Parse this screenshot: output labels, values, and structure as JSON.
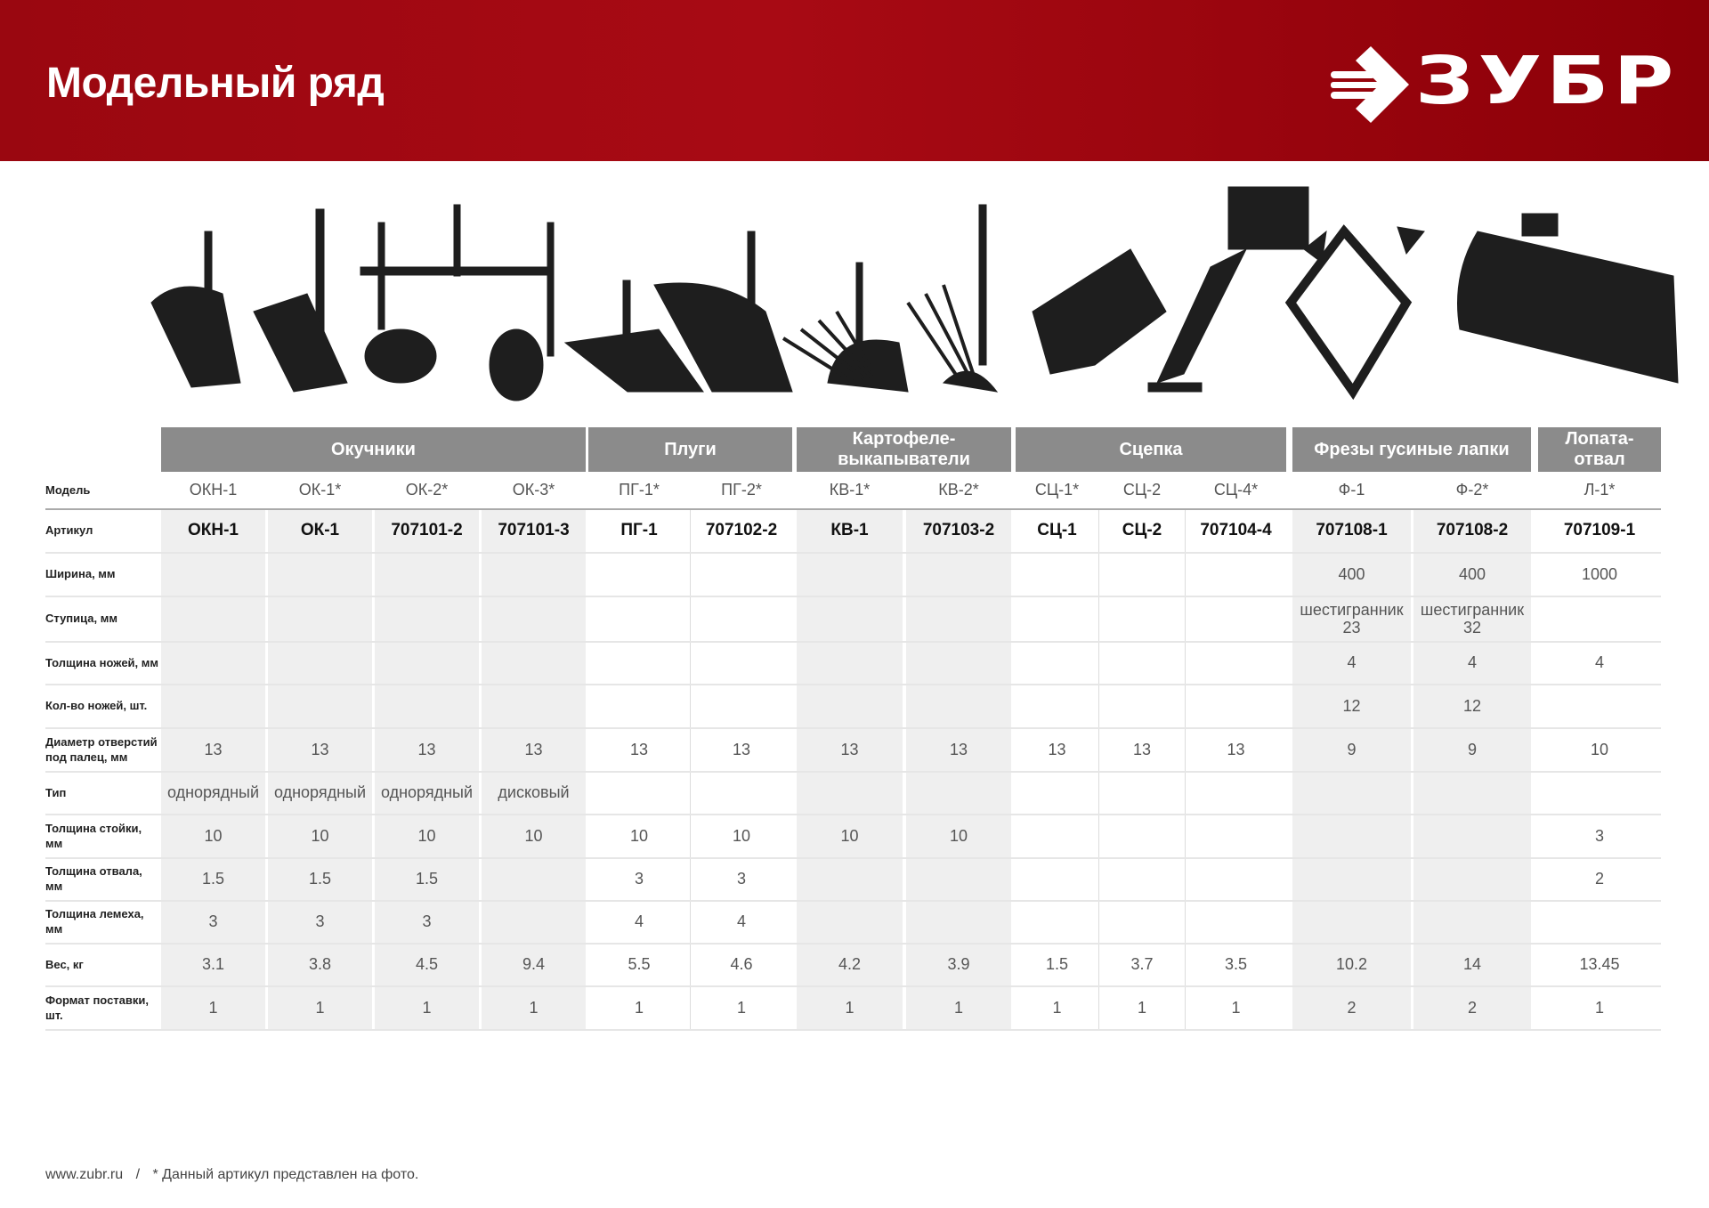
{
  "header": {
    "title": "Модельный ряд",
    "brand": "ЗУБР",
    "brand_color": "#a00a12"
  },
  "groups": [
    {
      "label": "Окучники",
      "span": [
        0,
        3
      ]
    },
    {
      "label": "Плуги",
      "span": [
        4,
        5
      ]
    },
    {
      "label": "Картофеле-\nвыкапыватели",
      "span": [
        6,
        7
      ]
    },
    {
      "label": "Сцепка",
      "span": [
        8,
        10
      ]
    },
    {
      "label": "Фрезы гусиные лапки",
      "span": [
        11,
        12
      ]
    },
    {
      "label": "Лопата-\nотвал",
      "span": [
        13,
        13
      ]
    }
  ],
  "model_label": "Модель",
  "models": [
    "ОКН-1",
    "ОК-1*",
    "ОК-2*",
    "ОК-3*",
    "ПГ-1*",
    "ПГ-2*",
    "КВ-1*",
    "КВ-2*",
    "СЦ-1*",
    "СЦ-2",
    "СЦ-4*",
    "Ф-1",
    "Ф-2*",
    "Л-1*"
  ],
  "article_label": "Артикул",
  "articles": [
    "ОКН-1",
    "ОК-1",
    "707101-2",
    "707101-3",
    "ПГ-1",
    "707102-2",
    "КВ-1",
    "707103-2",
    "СЦ-1",
    "СЦ-2",
    "707104-4",
    "707108-1",
    "707108-2",
    "707109-1"
  ],
  "rows": [
    {
      "label": "Ширина, мм",
      "values": [
        "",
        "",
        "",
        "",
        "",
        "",
        "",
        "",
        "",
        "",
        "",
        "400",
        "400",
        "1000"
      ]
    },
    {
      "label": "Ступица, мм",
      "values": [
        "",
        "",
        "",
        "",
        "",
        "",
        "",
        "",
        "",
        "",
        "",
        "шестигранник\n23",
        "шестигранник\n32",
        ""
      ]
    },
    {
      "label": "Толщина ножей, мм",
      "values": [
        "",
        "",
        "",
        "",
        "",
        "",
        "",
        "",
        "",
        "",
        "",
        "4",
        "4",
        "4"
      ]
    },
    {
      "label": "Кол-во ножей, шт.",
      "values": [
        "",
        "",
        "",
        "",
        "",
        "",
        "",
        "",
        "",
        "",
        "",
        "12",
        "12",
        ""
      ]
    },
    {
      "label": "Диаметр отверстий\nпод палец, мм",
      "values": [
        "13",
        "13",
        "13",
        "13",
        "13",
        "13",
        "13",
        "13",
        "13",
        "13",
        "13",
        "9",
        "9",
        "10"
      ]
    },
    {
      "label": "Тип",
      "values": [
        "однорядный",
        "однорядный",
        "однорядный",
        "дисковый",
        "",
        "",
        "",
        "",
        "",
        "",
        "",
        "",
        "",
        ""
      ]
    },
    {
      "label": "Толщина стойки, мм",
      "values": [
        "10",
        "10",
        "10",
        "10",
        "10",
        "10",
        "10",
        "10",
        "",
        "",
        "",
        "",
        "",
        "3"
      ]
    },
    {
      "label": "Толщина отвала, мм",
      "values": [
        "1.5",
        "1.5",
        "1.5",
        "",
        "3",
        "3",
        "",
        "",
        "",
        "",
        "",
        "",
        "",
        "2"
      ]
    },
    {
      "label": "Толщина лемеха, мм",
      "values": [
        "3",
        "3",
        "3",
        "",
        "4",
        "4",
        "",
        "",
        "",
        "",
        "",
        "",
        "",
        ""
      ]
    },
    {
      "label": "Вес, кг",
      "values": [
        "3.1",
        "3.8",
        "4.5",
        "9.4",
        "5.5",
        "4.6",
        "4.2",
        "3.9",
        "1.5",
        "3.7",
        "3.5",
        "10.2",
        "14",
        "13.45"
      ]
    },
    {
      "label": "Формат поставки,\nшт.",
      "values": [
        "1",
        "1",
        "1",
        "1",
        "1",
        "1",
        "1",
        "1",
        "1",
        "1",
        "1",
        "2",
        "2",
        "1"
      ]
    }
  ],
  "shaded_columns": [
    0,
    1,
    2,
    3,
    6,
    7,
    11,
    12
  ],
  "footer": {
    "site": "www.zubr.ru",
    "separator": "/",
    "note": "* Данный артикул представлен на фото."
  }
}
